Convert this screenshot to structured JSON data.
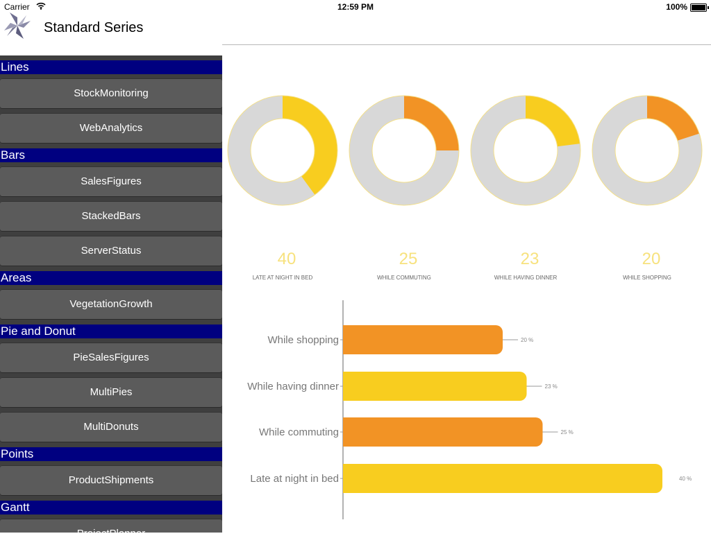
{
  "status": {
    "carrier": "Carrier",
    "time": "12:59 PM",
    "battery": "100%"
  },
  "app": {
    "title": "Standard Series",
    "logo_icon": "pinwheel-logo-icon"
  },
  "sidebar": {
    "sections": [
      {
        "title": "Lines",
        "items": [
          "StockMonitoring",
          "WebAnalytics"
        ]
      },
      {
        "title": "Bars",
        "items": [
          "SalesFigures",
          "StackedBars",
          "ServerStatus"
        ]
      },
      {
        "title": "Areas",
        "items": [
          "VegetationGrowth"
        ]
      },
      {
        "title": "Pie and Donut",
        "items": [
          "PieSalesFigures",
          "MultiPies",
          "MultiDonuts"
        ]
      },
      {
        "title": "Points",
        "items": [
          "ProductShipments"
        ]
      },
      {
        "title": "Gantt",
        "items": [
          "ProjectPlanner"
        ]
      }
    ]
  },
  "colors": {
    "yellow": "#f8cd1f",
    "orange": "#f29325",
    "grey": "#d8d8d8",
    "number": "#f7e27e",
    "section": "#000080"
  },
  "chart_data": [
    {
      "type": "pie",
      "style": "donut",
      "donuts": [
        {
          "value": 40,
          "label": "LATE AT NIGHT IN BED",
          "color": "#f8cd1f"
        },
        {
          "value": 25,
          "label": "WHILE COMMUTING",
          "color": "#f29325"
        },
        {
          "value": 23,
          "label": "WHILE HAVING DINNER",
          "color": "#f8cd1f"
        },
        {
          "value": 20,
          "label": "WHILE SHOPPING",
          "color": "#f29325"
        }
      ],
      "remainder_color": "#d8d8d8"
    },
    {
      "type": "bar",
      "orientation": "horizontal",
      "categories": [
        "While shopping",
        "While having dinner",
        "While commuting",
        "Late at night in bed"
      ],
      "values": [
        20,
        23,
        25,
        40
      ],
      "value_labels": [
        "20 %",
        "23 %",
        "25 %",
        "40 %"
      ],
      "colors": [
        "#f29325",
        "#f8cd1f",
        "#f29325",
        "#f8cd1f"
      ],
      "xlim": [
        0,
        40
      ]
    }
  ]
}
